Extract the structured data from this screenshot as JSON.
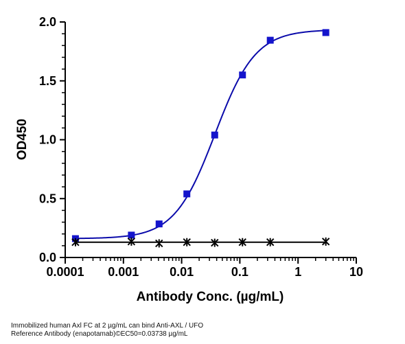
{
  "chart_data": {
    "type": "scatter",
    "xlabel": "Antibody Conc. (µg/mL)",
    "ylabel": "OD450",
    "x_scale": "log",
    "xlim": [
      0.0001,
      10
    ],
    "ylim": [
      0,
      2.0
    ],
    "x_tick_labels": [
      "0.0001",
      "0.001",
      "0.01",
      "0.1",
      "1",
      "10"
    ],
    "x_tick_values": [
      0.0001,
      0.001,
      0.01,
      0.1,
      1,
      10
    ],
    "y_tick_labels": [
      "0.0",
      "0.5",
      "1.0",
      "1.5",
      "2.0"
    ],
    "y_tick_values": [
      0,
      0.5,
      1.0,
      1.5,
      2.0
    ],
    "grid": false,
    "legend": "none",
    "series": [
      {
        "marker": "square",
        "color": "#1414cc",
        "line_color": "#0a0aaa",
        "fit": "4PL",
        "fit_params": {
          "bottom": 0.16,
          "top": 1.935,
          "ec50": 0.03738,
          "hill": 1.25
        },
        "x": [
          0.00015,
          0.00137,
          0.0041,
          0.0123,
          0.037,
          0.111,
          0.333,
          3
        ],
        "y": [
          0.16,
          0.19,
          0.285,
          0.54,
          1.04,
          1.55,
          1.845,
          1.91
        ]
      },
      {
        "marker": "asterisk",
        "color": "#000000",
        "line_color": "#000000",
        "fit": "line",
        "x": [
          0.00015,
          0.00137,
          0.0041,
          0.0123,
          0.037,
          0.111,
          0.333,
          3
        ],
        "y": [
          0.13,
          0.135,
          0.12,
          0.13,
          0.125,
          0.13,
          0.13,
          0.135
        ]
      }
    ]
  },
  "caption": {
    "line1": "Immobilized human Axl FC  at 2  µg/mL can bind  Anti-AXL / UFO",
    "line2": "Reference Antibody (enapotamab)©EC50=0.03738 µg/mL"
  }
}
